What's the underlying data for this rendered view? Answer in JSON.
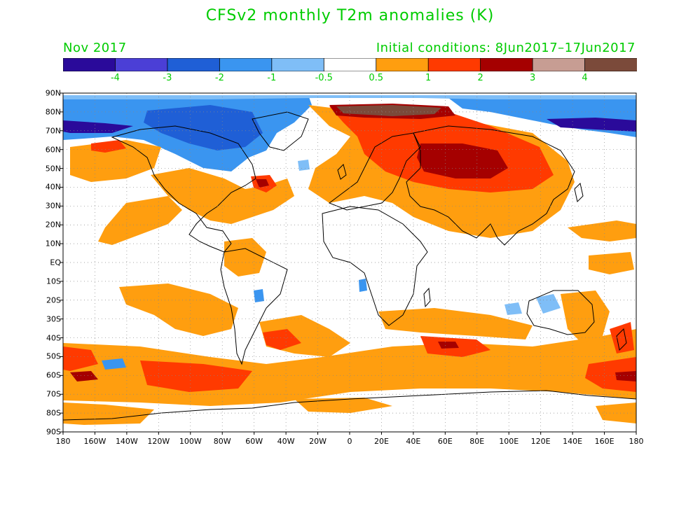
{
  "title": "CFSv2 monthly T2m anomalies (K)",
  "valid_month": "Nov 2017",
  "initial_conditions": "Initial conditions: 8Jun2017–17Jun2017",
  "colorbar": {
    "colors": [
      "#2a0a9a",
      "#4b3fd6",
      "#1f5fd6",
      "#3a95f0",
      "#7fbef7",
      "#ffffff",
      "#ff9e0f",
      "#ff3a00",
      "#a50000",
      "#c79d93",
      "#7b4a3a"
    ],
    "tick_labels": [
      "-4",
      "-3",
      "-2",
      "-1",
      "-0.5",
      "0.5",
      "1",
      "2",
      "3",
      "4"
    ]
  },
  "axes": {
    "lat_labels": [
      "90N",
      "80N",
      "70N",
      "60N",
      "50N",
      "40N",
      "30N",
      "20N",
      "10N",
      "EQ",
      "10S",
      "20S",
      "30S",
      "40S",
      "50S",
      "60S",
      "70S",
      "80S",
      "90S"
    ],
    "lon_labels": [
      "180",
      "160W",
      "140W",
      "120W",
      "100W",
      "80W",
      "60W",
      "40W",
      "20W",
      "0",
      "20E",
      "40E",
      "60E",
      "80E",
      "100E",
      "120E",
      "140E",
      "160E",
      "180"
    ]
  }
}
